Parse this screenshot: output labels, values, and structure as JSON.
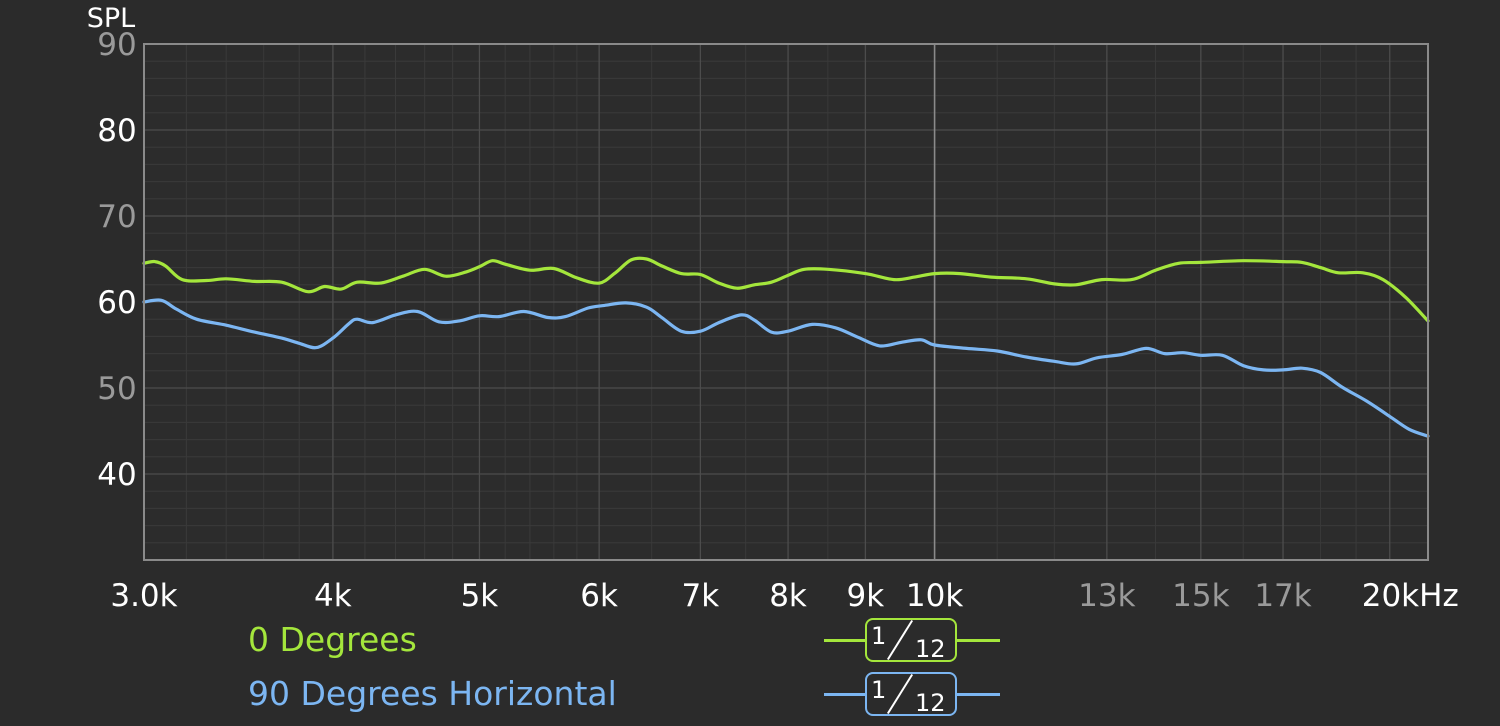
{
  "chart_data": {
    "type": "line",
    "title": "",
    "ylabel": "SPL",
    "xlabel": "",
    "xscale": "log",
    "xlim": [
      3000,
      21200
    ],
    "ylim": [
      30,
      90
    ],
    "grid": true,
    "background": "#2b2b2b",
    "plot_background": "#2c2c2c",
    "y_ticks": [
      {
        "value": 90,
        "label": "90",
        "bright": false
      },
      {
        "value": 80,
        "label": "80",
        "bright": true
      },
      {
        "value": 70,
        "label": "70",
        "bright": false
      },
      {
        "value": 60,
        "label": "60",
        "bright": true
      },
      {
        "value": 50,
        "label": "50",
        "bright": false
      },
      {
        "value": 40,
        "label": "40",
        "bright": true
      }
    ],
    "x_ticks": [
      {
        "value": 3000,
        "label": "3.0k",
        "bright": true
      },
      {
        "value": 4000,
        "label": "4k",
        "bright": true
      },
      {
        "value": 5000,
        "label": "5k",
        "bright": true
      },
      {
        "value": 6000,
        "label": "6k",
        "bright": true
      },
      {
        "value": 7000,
        "label": "7k",
        "bright": true
      },
      {
        "value": 8000,
        "label": "8k",
        "bright": true
      },
      {
        "value": 9000,
        "label": "9k",
        "bright": true
      },
      {
        "value": 10000,
        "label": "10k",
        "bright": true
      },
      {
        "value": 13000,
        "label": "13k",
        "bright": false
      },
      {
        "value": 15000,
        "label": "15k",
        "bright": false
      },
      {
        "value": 17000,
        "label": "17k",
        "bright": false
      },
      {
        "value": 20000,
        "label": "20kHz",
        "bright": true
      }
    ],
    "series": [
      {
        "name": "0 Degrees",
        "color": "#a4e63c",
        "smoothing": {
          "num": "1",
          "den": "12"
        },
        "points": [
          [
            3000,
            64.5
          ],
          [
            3050,
            64.7
          ],
          [
            3100,
            64.2
          ],
          [
            3180,
            62.6
          ],
          [
            3300,
            62.5
          ],
          [
            3400,
            62.7
          ],
          [
            3550,
            62.4
          ],
          [
            3700,
            62.3
          ],
          [
            3850,
            61.2
          ],
          [
            3950,
            61.8
          ],
          [
            4050,
            61.5
          ],
          [
            4150,
            62.3
          ],
          [
            4300,
            62.2
          ],
          [
            4450,
            63.0
          ],
          [
            4600,
            63.8
          ],
          [
            4750,
            63.0
          ],
          [
            4900,
            63.5
          ],
          [
            5000,
            64.1
          ],
          [
            5100,
            64.8
          ],
          [
            5200,
            64.4
          ],
          [
            5400,
            63.7
          ],
          [
            5600,
            63.9
          ],
          [
            5800,
            62.8
          ],
          [
            6000,
            62.2
          ],
          [
            6150,
            63.4
          ],
          [
            6300,
            64.9
          ],
          [
            6450,
            65.0
          ],
          [
            6600,
            64.2
          ],
          [
            6800,
            63.3
          ],
          [
            7000,
            63.2
          ],
          [
            7200,
            62.2
          ],
          [
            7400,
            61.6
          ],
          [
            7600,
            62.0
          ],
          [
            7800,
            62.3
          ],
          [
            8000,
            63.1
          ],
          [
            8200,
            63.8
          ],
          [
            8500,
            63.8
          ],
          [
            9000,
            63.3
          ],
          [
            9400,
            62.6
          ],
          [
            9700,
            62.9
          ],
          [
            10000,
            63.3
          ],
          [
            10400,
            63.3
          ],
          [
            10900,
            62.9
          ],
          [
            11500,
            62.7
          ],
          [
            12000,
            62.1
          ],
          [
            12400,
            62.0
          ],
          [
            12900,
            62.6
          ],
          [
            13500,
            62.6
          ],
          [
            14000,
            63.7
          ],
          [
            14500,
            64.5
          ],
          [
            15000,
            64.6
          ],
          [
            16000,
            64.8
          ],
          [
            17000,
            64.7
          ],
          [
            17500,
            64.6
          ],
          [
            18000,
            64.0
          ],
          [
            18500,
            63.4
          ],
          [
            19200,
            63.4
          ],
          [
            19800,
            62.6
          ],
          [
            20500,
            60.5
          ],
          [
            21200,
            57.8
          ]
        ]
      },
      {
        "name": "90 Degrees Horizontal",
        "color": "#7cb6f2",
        "smoothing": {
          "num": "1",
          "den": "12"
        },
        "points": [
          [
            3000,
            60.0
          ],
          [
            3080,
            60.2
          ],
          [
            3150,
            59.2
          ],
          [
            3250,
            58.0
          ],
          [
            3400,
            57.3
          ],
          [
            3550,
            56.5
          ],
          [
            3700,
            55.8
          ],
          [
            3800,
            55.2
          ],
          [
            3900,
            54.7
          ],
          [
            4000,
            55.8
          ],
          [
            4100,
            57.5
          ],
          [
            4150,
            58.0
          ],
          [
            4250,
            57.6
          ],
          [
            4400,
            58.5
          ],
          [
            4550,
            58.9
          ],
          [
            4700,
            57.7
          ],
          [
            4850,
            57.8
          ],
          [
            5000,
            58.4
          ],
          [
            5150,
            58.3
          ],
          [
            5350,
            58.9
          ],
          [
            5550,
            58.2
          ],
          [
            5700,
            58.3
          ],
          [
            5900,
            59.3
          ],
          [
            6050,
            59.6
          ],
          [
            6250,
            59.9
          ],
          [
            6450,
            59.4
          ],
          [
            6600,
            58.2
          ],
          [
            6800,
            56.6
          ],
          [
            7000,
            56.6
          ],
          [
            7200,
            57.6
          ],
          [
            7450,
            58.5
          ],
          [
            7600,
            57.9
          ],
          [
            7800,
            56.5
          ],
          [
            8000,
            56.6
          ],
          [
            8300,
            57.4
          ],
          [
            8600,
            57.0
          ],
          [
            8900,
            55.9
          ],
          [
            9200,
            54.9
          ],
          [
            9500,
            55.3
          ],
          [
            9800,
            55.6
          ],
          [
            10000,
            55.0
          ],
          [
            10500,
            54.6
          ],
          [
            11000,
            54.3
          ],
          [
            11500,
            53.6
          ],
          [
            12000,
            53.1
          ],
          [
            12400,
            52.8
          ],
          [
            12800,
            53.5
          ],
          [
            13300,
            53.9
          ],
          [
            13800,
            54.6
          ],
          [
            14200,
            54.0
          ],
          [
            14600,
            54.1
          ],
          [
            15000,
            53.8
          ],
          [
            15500,
            53.8
          ],
          [
            16000,
            52.6
          ],
          [
            16500,
            52.1
          ],
          [
            17000,
            52.1
          ],
          [
            17500,
            52.3
          ],
          [
            18000,
            51.8
          ],
          [
            18600,
            50.1
          ],
          [
            19300,
            48.5
          ],
          [
            20000,
            46.7
          ],
          [
            20600,
            45.2
          ],
          [
            21200,
            44.4
          ]
        ]
      }
    ]
  }
}
